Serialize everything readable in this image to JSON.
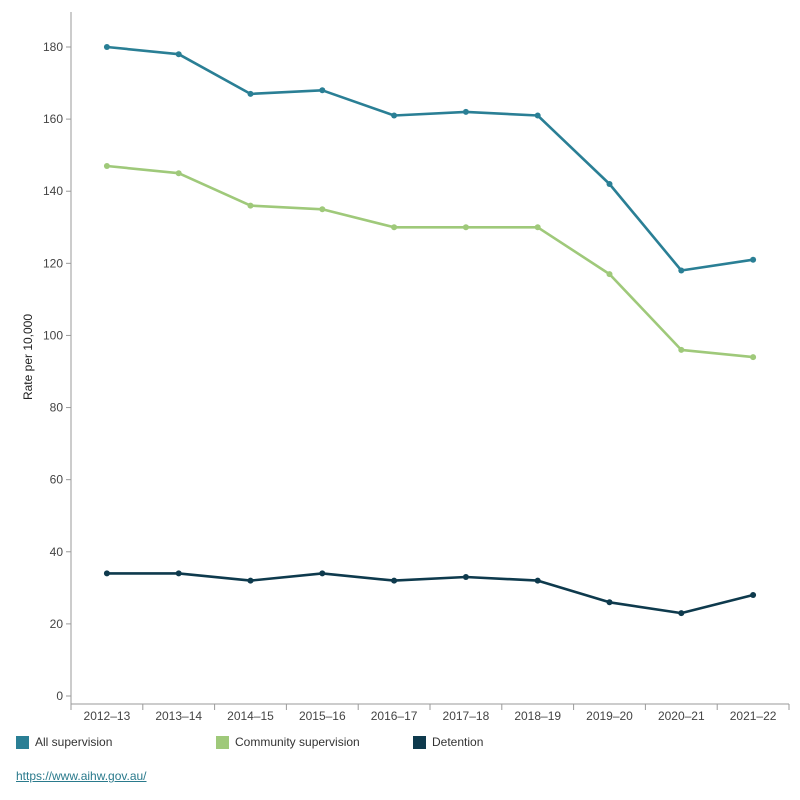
{
  "chart_data": {
    "type": "line",
    "title": "",
    "xlabel": "",
    "ylabel": "Rate per 10,000",
    "ylim": [
      0,
      190
    ],
    "yticks": [
      0,
      20,
      40,
      60,
      80,
      100,
      120,
      140,
      160,
      180
    ],
    "categories": [
      "2012–13",
      "2013–14",
      "2014–15",
      "2015–16",
      "2016–17",
      "2017–18",
      "2018–19",
      "2019–20",
      "2020–21",
      "2021–22"
    ],
    "series": [
      {
        "name": "All supervision",
        "color": "#2a7f95",
        "values": [
          180,
          178,
          167,
          168,
          161,
          162,
          161,
          142,
          118,
          121
        ]
      },
      {
        "name": "Community supervision",
        "color": "#9fc97a",
        "values": [
          147,
          145,
          136,
          135,
          130,
          130,
          130,
          117,
          96,
          94
        ]
      },
      {
        "name": "Detention",
        "color": "#0e3a4d",
        "values": [
          34,
          34,
          32,
          34,
          32,
          33,
          32,
          26,
          23,
          28
        ]
      }
    ],
    "legend_position": "bottom-left"
  },
  "source": {
    "link_text": "https://www.aihw.gov.au/"
  }
}
